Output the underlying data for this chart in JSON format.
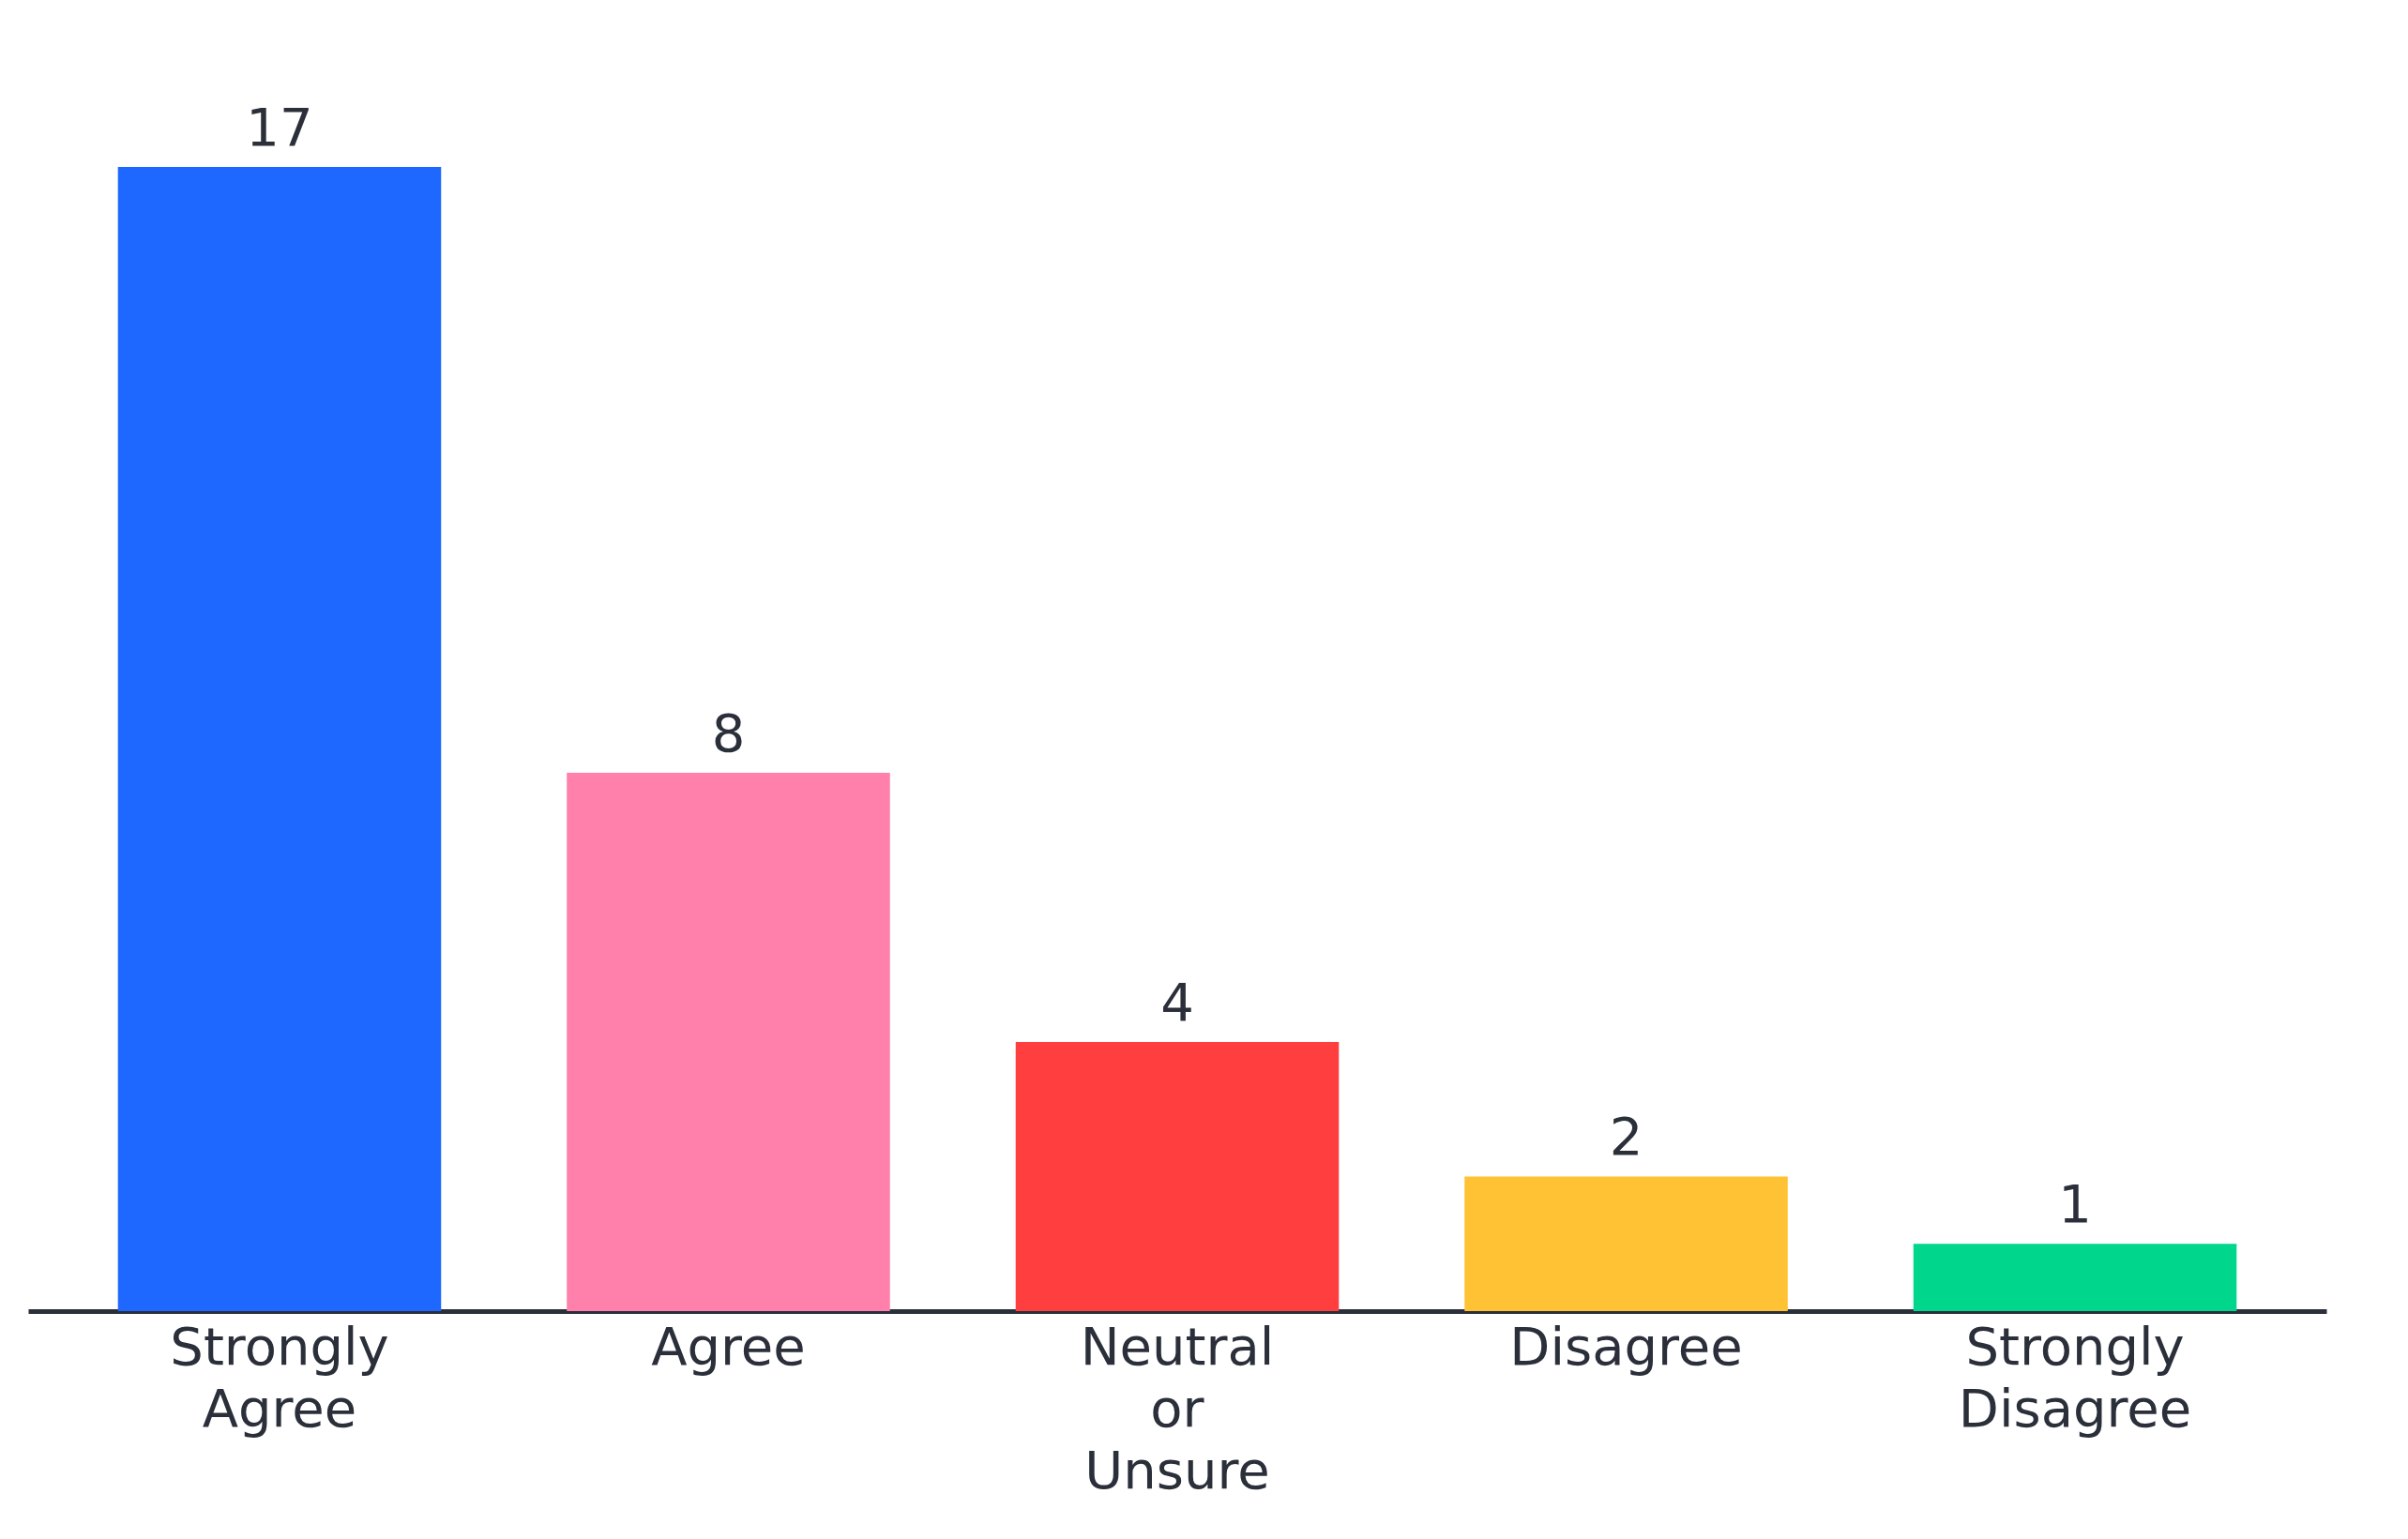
{
  "chart_data": {
    "type": "bar",
    "categories": [
      "Strongly Agree",
      "Agree",
      "Neutral or Unsure",
      "Disagree",
      "Strongly Disagree"
    ],
    "values": [
      17,
      8,
      4,
      2,
      1
    ],
    "colors": [
      "#1e68ff",
      "#ff80ab",
      "#ff3f3f",
      "#ffc234",
      "#00d68c"
    ],
    "data_labels": true,
    "tick_labels": "x"
  }
}
